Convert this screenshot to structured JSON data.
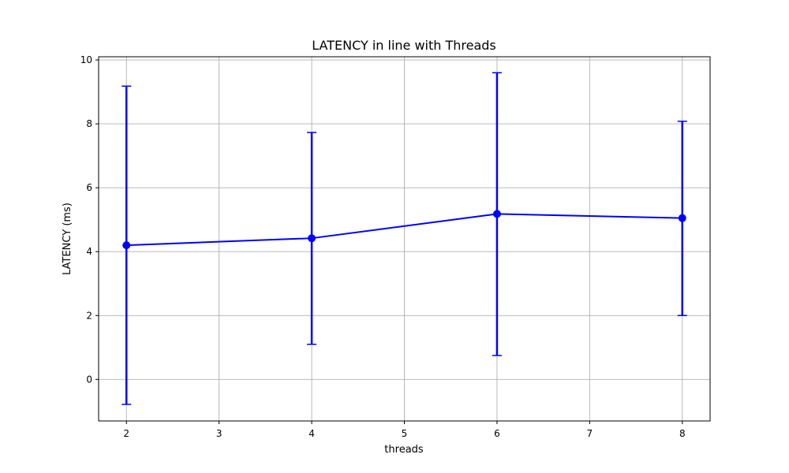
{
  "chart_data": {
    "type": "line",
    "title": "LATENCY in line with Threads",
    "xlabel": "threads",
    "ylabel": "LATENCY (ms)",
    "xlim": [
      1.7,
      8.3
    ],
    "ylim": [
      -1.3,
      10.1
    ],
    "xticks": [
      2,
      3,
      4,
      5,
      6,
      7,
      8
    ],
    "yticks": [
      0,
      2,
      4,
      6,
      8,
      10
    ],
    "grid": true,
    "color": "#0000ff",
    "series": [
      {
        "x": [
          2,
          4,
          6,
          8
        ],
        "y": [
          4.2,
          4.42,
          5.18,
          5.05
        ],
        "err_low": [
          -0.78,
          1.1,
          0.75,
          2.0
        ],
        "err_high": [
          9.18,
          7.73,
          9.6,
          8.08
        ]
      }
    ]
  }
}
